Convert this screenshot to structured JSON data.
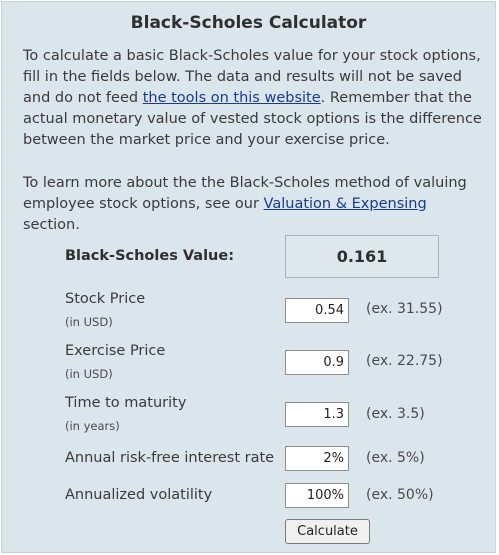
{
  "title": "Black-Scholes Calculator",
  "intro": {
    "text_before_link": "To calculate a basic Black-Scholes value for your stock options, fill in the fields below. The data and results will not be saved and do not feed ",
    "link_text": "the tools on this website",
    "text_after_link": ". Remember that the actual monetary value of vested stock options is the difference between the market price and your exercise price."
  },
  "learn_more": {
    "text_before_link": "To learn more about the the Black-Scholes method of valuing employee stock options, see our ",
    "link_text": "Valuation & Expensing",
    "text_after_link": " section."
  },
  "result": {
    "label": "Black-Scholes Value:",
    "value": "0.161"
  },
  "fields": {
    "stock_price": {
      "label": "Stock Price",
      "unit": "(in USD)",
      "value": "0.54",
      "example": "(ex. 31.55)"
    },
    "exercise_price": {
      "label": "Exercise Price",
      "unit": "(in USD)",
      "value": "0.9",
      "example": "(ex. 22.75)"
    },
    "time_to_maturity": {
      "label": "Time to maturity",
      "unit": "(in years)",
      "value": "1.3",
      "example": "(ex. 3.5)"
    },
    "interest_rate": {
      "label": "Annual risk-free interest rate",
      "value": "2%",
      "example": "(ex. 5%)"
    },
    "volatility": {
      "label": "Annualized volatility",
      "value": "100%",
      "example": "(ex. 50%)"
    }
  },
  "calculate_label": "Calculate",
  "colors": {
    "panel_background": "#dbe6ec",
    "link": "#1a3a8a"
  }
}
